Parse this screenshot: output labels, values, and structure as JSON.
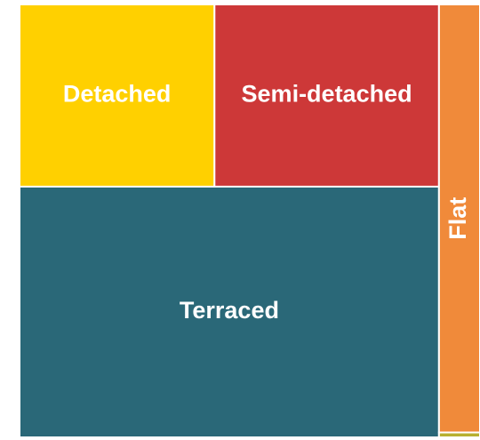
{
  "chart_data": {
    "type": "treemap",
    "categories": [
      "Detached",
      "Semi-detached",
      "Terraced",
      "Flat",
      null
    ],
    "values": [
      17.8,
      20.5,
      52.7,
      8.8,
      0.1
    ],
    "colors": [
      "#ffd000",
      "#cd3838",
      "#2a6878",
      "#f08a3a",
      "#b8b030"
    ]
  }
}
